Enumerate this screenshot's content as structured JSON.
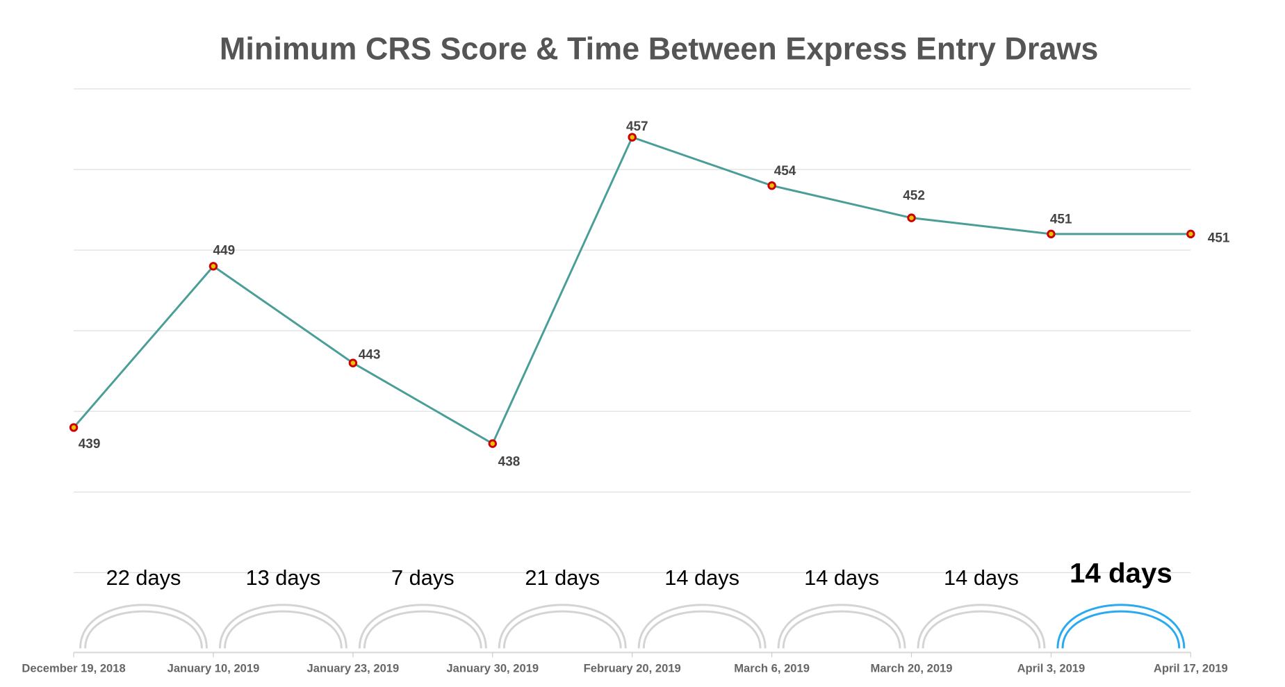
{
  "chart_data": {
    "type": "line",
    "title": "Minimum CRS Score & Time Between Express Entry Draws",
    "categories": [
      "December 19, 2018",
      "January 10, 2019",
      "January 23, 2019",
      "January 30, 2019",
      "February 20, 2019",
      "March 6, 2019",
      "March 20, 2019",
      "April 3, 2019",
      "April 17, 2019"
    ],
    "values": [
      439,
      449,
      443,
      438,
      457,
      454,
      452,
      451,
      451
    ],
    "data_labels": [
      "439",
      "449",
      "443",
      "438",
      "457",
      "454",
      "452",
      "451",
      "451"
    ],
    "ylim": [
      430,
      460
    ],
    "y_gridlines": [
      430,
      435,
      440,
      445,
      450,
      455,
      460
    ],
    "grid": true,
    "y_tick_labels_shown": false,
    "intervals": [
      "22 days",
      "13 days",
      "7 days",
      "21 days",
      "14 days",
      "14 days",
      "14 days",
      "14 days"
    ],
    "highlighted_interval": 7,
    "colors": {
      "line": "#4a9e98",
      "marker_fill": "#e8c400",
      "marker_stroke": "#cc0000",
      "arc": "#d4d4d4",
      "arc_highlight": "#29aaf0",
      "title": "#555555",
      "grid": "#dddddd"
    }
  }
}
